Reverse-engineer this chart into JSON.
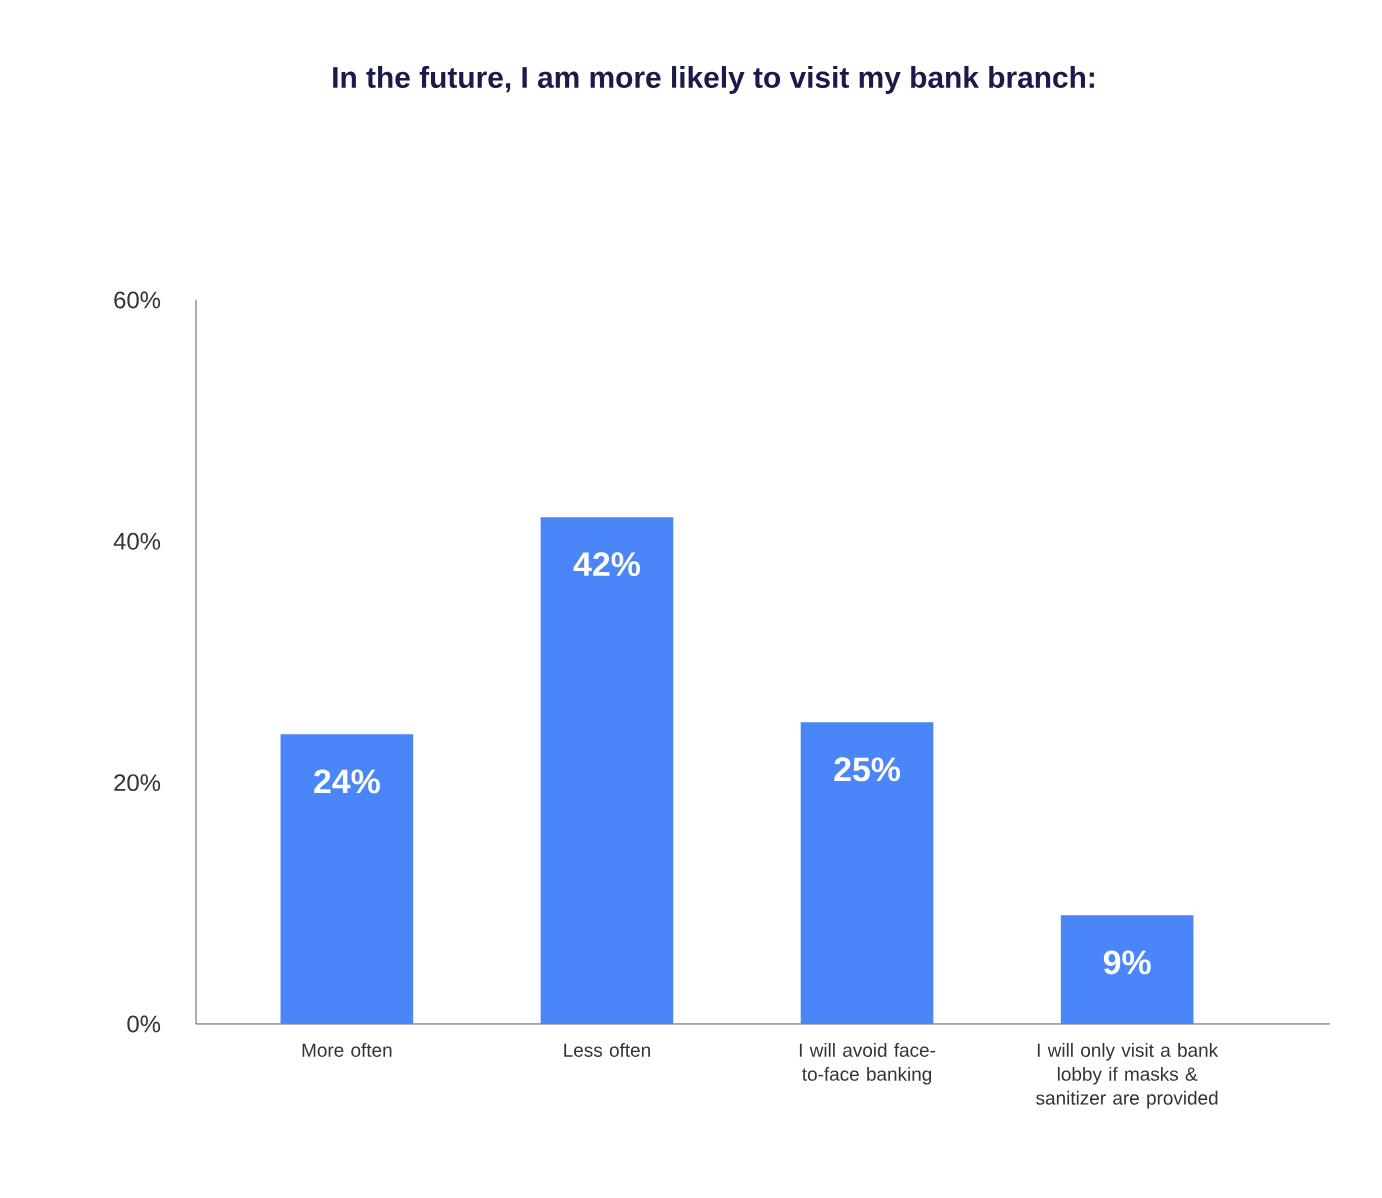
{
  "chart_data": {
    "type": "bar",
    "title": "In the future, I am more likely to visit my bank branch:",
    "categories": [
      "More often",
      "Less often",
      "I will avoid face-to-face banking",
      "I will only visit a bank lobby if masks & sanitizer are provided"
    ],
    "values": [
      24,
      42,
      25,
      9
    ],
    "value_labels": [
      "24%",
      "42%",
      "25%",
      "9%"
    ],
    "color": "#4a86f7",
    "ylim": [
      0,
      60
    ],
    "yticks": [
      {
        "value": 0,
        "label": "0%"
      },
      {
        "value": 20,
        "label": "20%"
      },
      {
        "value": 40,
        "label": "40%"
      },
      {
        "value": 60,
        "label": "60%"
      }
    ]
  }
}
